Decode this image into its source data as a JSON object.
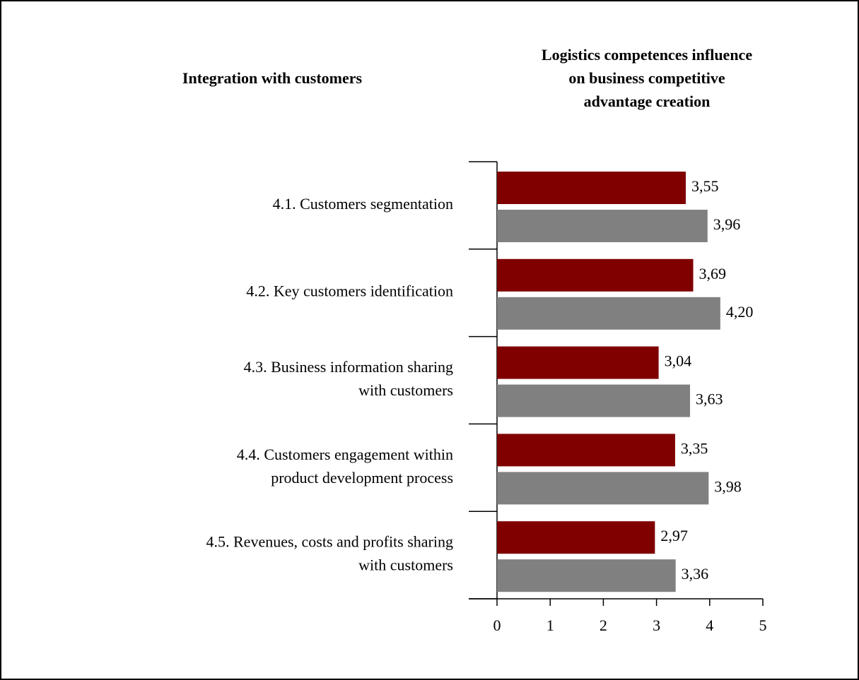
{
  "chart_data": {
    "type": "hbar",
    "title": "Integration with customers",
    "subtitle": [
      "Logistics competences influence",
      "on business competitive",
      "advantage creation"
    ],
    "categories": [
      [
        "4.1. Customers segmentation"
      ],
      [
        "4.2. Key customers identification"
      ],
      [
        "4.3. Business information sharing",
        "with customers"
      ],
      [
        "4.4. Customers engagement within",
        "product development process"
      ],
      [
        "4.5. Revenues, costs and profits sharing",
        "with customers"
      ]
    ],
    "series": [
      {
        "color": "#800000",
        "values": [
          3.55,
          3.69,
          3.04,
          3.35,
          2.97
        ],
        "value_labels": [
          "3,55",
          "3,69",
          "3,04",
          "3,35",
          "2,97"
        ]
      },
      {
        "color": "#808080",
        "values": [
          3.96,
          4.2,
          3.63,
          3.98,
          3.36
        ],
        "value_labels": [
          "3,96",
          "4,20",
          "3,63",
          "3,98",
          "3,36"
        ]
      }
    ],
    "xlim": [
      0,
      5
    ],
    "xticks": [
      0,
      1,
      2,
      3,
      4,
      5
    ]
  }
}
